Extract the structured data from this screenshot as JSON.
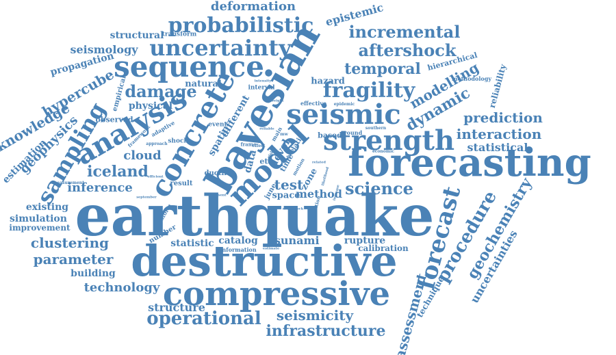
{
  "color": "#4a82b6",
  "words": {
    "earthquake": "earthquake",
    "destructive": "destructive",
    "forecasting": "forecasting",
    "bayesian": "bayesian",
    "compressive": "compressive",
    "concrete": "concrete",
    "model": "model",
    "sequence": "sequence",
    "seismic": "seismic",
    "strength": "strength",
    "uncertainty": "uncertainty",
    "probabilistic": "probabilistic",
    "analysis": "analysis",
    "sampling": "sampling",
    "fragility": "fragility",
    "forecast": "forecast",
    "procedure": "procedure",
    "operational": "operational",
    "infrastructure": "infrastructure",
    "seismicity": "seismicity",
    "aftershock": "aftershock",
    "incremental": "incremental",
    "temporal": "temporal",
    "damage": "damage",
    "modelling": "modelling",
    "dynamic": "dynamic",
    "prediction": "prediction",
    "interaction": "interaction",
    "statistical": "statistical",
    "science": "science",
    "geochemistry": "geochemistry",
    "uncertainties": "uncertainties",
    "assessment": "assessment",
    "technique": "technique",
    "iceland": "iceland",
    "inference": "inference",
    "cloud": "cloud",
    "clustering": "clustering",
    "parameter": "parameter",
    "building": "building",
    "technology": "technology",
    "structure": "structure",
    "tsunami": "tsunami",
    "rupture": "rupture",
    "calibration": "calibration",
    "catalog": "catalog",
    "statistic": "statistic",
    "information": "information",
    "estimate": "estimate",
    "deformation": "deformation",
    "epistemic": "epistemic",
    "structural": "structural",
    "transform": "transform",
    "seismology": "seismology",
    "propagation": "propagation",
    "hypercube": "hypercube",
    "knowledge": "knowledge",
    "geophysics": "geophysics",
    "estimation": "estimation",
    "existing": "existing",
    "simulation": "simulation",
    "improvement": "improvement",
    "physical": "physical",
    "natural": "natural",
    "empirical": "empirical",
    "observed": "observed",
    "framework": "framework",
    "approach": "approach",
    "adaptive": "adaptive",
    "shock": "shock",
    "event": "event",
    "spatio": "spatio",
    "different": "different",
    "interval": "interval",
    "intensity": "intensity",
    "hazard": "hazard",
    "hierarchical": "hierarchical",
    "methodology": "methodology",
    "reliability": "reliability",
    "effective": "effective",
    "epidemic": "epidemic",
    "level": "level",
    "latin": "latin",
    "based": "based",
    "ground": "ground",
    "southern": "southern",
    "economic": "economic",
    "measurement": "measurement",
    "efficient": "efficient",
    "result": "result",
    "september": "september",
    "ductile": "ductile",
    "data": "data",
    "eta": "eta",
    "time": "time",
    "test": "test",
    "zone": "zone",
    "space": "space",
    "method": "method",
    "june": "june",
    "application": "application",
    "likelihood": "likelihood",
    "number": "number",
    "present": "present",
    "main": "main",
    "related": "related",
    "motion": "motion",
    "weight": "weight",
    "frame": "frame",
    "depth": "depth",
    "effect": "effect",
    "reliable": "reliable",
    "risk": "risk",
    "china": "china",
    "mainshock": "mainshock",
    "increase": "increase",
    "mw": "mw"
  }
}
